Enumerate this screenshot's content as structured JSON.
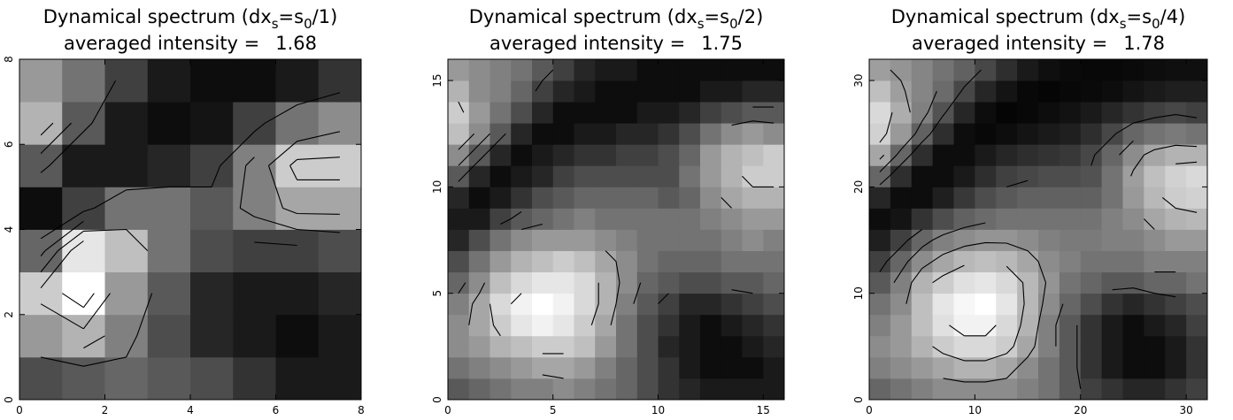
{
  "chart_data": [
    {
      "type": "heatmap",
      "title_parts": [
        {
          "text": "Dynamical spectrum (dx"
        },
        {
          "text": "s",
          "sub": true
        },
        {
          "text": "=s"
        },
        {
          "text": "0",
          "sub": true
        },
        {
          "text": "/1)"
        }
      ],
      "subtitle": "averaged intensity =",
      "averaged_intensity": 1.68,
      "xlim": [
        0,
        8
      ],
      "ylim": [
        0,
        8
      ],
      "xticks": [
        0,
        2,
        4,
        6,
        8
      ],
      "yticks": [
        0,
        2,
        4,
        6,
        8
      ],
      "colormap": "gray",
      "zlim": [
        0,
        1
      ],
      "contour_levels": [
        0.3,
        0.45,
        0.6,
        0.75,
        0.9
      ],
      "z": [
        [
          0.3,
          0.35,
          0.4,
          0.35,
          0.3,
          0.2,
          0.1,
          0.1
        ],
        [
          0.6,
          0.7,
          0.5,
          0.3,
          0.15,
          0.1,
          0.05,
          0.1
        ],
        [
          0.8,
          1.0,
          0.6,
          0.35,
          0.15,
          0.1,
          0.1,
          0.15
        ],
        [
          0.4,
          0.9,
          0.75,
          0.45,
          0.3,
          0.25,
          0.25,
          0.3
        ],
        [
          0.05,
          0.25,
          0.45,
          0.45,
          0.35,
          0.5,
          0.65,
          0.65
        ],
        [
          0.35,
          0.1,
          0.1,
          0.15,
          0.25,
          0.5,
          0.8,
          0.8
        ],
        [
          0.7,
          0.35,
          0.1,
          0.05,
          0.08,
          0.25,
          0.45,
          0.55
        ],
        [
          0.6,
          0.45,
          0.25,
          0.1,
          0.05,
          0.05,
          0.1,
          0.2
        ]
      ]
    },
    {
      "type": "heatmap",
      "title_parts": [
        {
          "text": "Dynamical spectrum (dx"
        },
        {
          "text": "s",
          "sub": true
        },
        {
          "text": "=s"
        },
        {
          "text": "0",
          "sub": true
        },
        {
          "text": "/2)"
        }
      ],
      "subtitle": "averaged intensity =",
      "averaged_intensity": 1.75,
      "xlim": [
        0,
        16
      ],
      "ylim": [
        0,
        16
      ],
      "xticks": [
        0,
        5,
        10,
        15
      ],
      "yticks": [
        0,
        5,
        10,
        15
      ],
      "colormap": "gray",
      "zlim": [
        0,
        1
      ],
      "contour_levels": [
        0.3,
        0.45,
        0.6,
        0.75,
        0.9
      ],
      "z": [
        [
          0.35,
          0.4,
          0.45,
          0.5,
          0.5,
          0.55,
          0.5,
          0.45,
          0.4,
          0.3,
          0.2,
          0.15,
          0.1,
          0.1,
          0.1,
          0.1
        ],
        [
          0.45,
          0.5,
          0.55,
          0.6,
          0.65,
          0.65,
          0.6,
          0.5,
          0.4,
          0.3,
          0.2,
          0.1,
          0.05,
          0.05,
          0.05,
          0.1
        ],
        [
          0.55,
          0.6,
          0.7,
          0.75,
          0.8,
          0.8,
          0.75,
          0.6,
          0.45,
          0.3,
          0.15,
          0.1,
          0.05,
          0.05,
          0.1,
          0.15
        ],
        [
          0.55,
          0.65,
          0.8,
          0.9,
          0.95,
          0.9,
          0.8,
          0.65,
          0.45,
          0.3,
          0.2,
          0.1,
          0.05,
          0.1,
          0.15,
          0.2
        ],
        [
          0.5,
          0.65,
          0.85,
          0.95,
          1.0,
          0.95,
          0.85,
          0.7,
          0.5,
          0.35,
          0.25,
          0.15,
          0.15,
          0.2,
          0.25,
          0.3
        ],
        [
          0.4,
          0.55,
          0.75,
          0.85,
          0.9,
          0.9,
          0.85,
          0.7,
          0.55,
          0.4,
          0.35,
          0.3,
          0.3,
          0.35,
          0.35,
          0.4
        ],
        [
          0.3,
          0.45,
          0.6,
          0.7,
          0.75,
          0.8,
          0.75,
          0.65,
          0.55,
          0.45,
          0.4,
          0.4,
          0.4,
          0.45,
          0.45,
          0.45
        ],
        [
          0.15,
          0.3,
          0.45,
          0.55,
          0.6,
          0.6,
          0.6,
          0.55,
          0.5,
          0.45,
          0.45,
          0.45,
          0.45,
          0.5,
          0.55,
          0.5
        ],
        [
          0.1,
          0.1,
          0.25,
          0.35,
          0.4,
          0.45,
          0.5,
          0.45,
          0.45,
          0.45,
          0.45,
          0.45,
          0.5,
          0.55,
          0.6,
          0.6
        ],
        [
          0.15,
          0.05,
          0.1,
          0.2,
          0.3,
          0.35,
          0.4,
          0.4,
          0.4,
          0.4,
          0.35,
          0.4,
          0.55,
          0.65,
          0.7,
          0.7
        ],
        [
          0.35,
          0.15,
          0.05,
          0.1,
          0.15,
          0.25,
          0.3,
          0.3,
          0.3,
          0.3,
          0.3,
          0.45,
          0.6,
          0.7,
          0.8,
          0.8
        ],
        [
          0.55,
          0.35,
          0.15,
          0.05,
          0.1,
          0.15,
          0.2,
          0.2,
          0.25,
          0.25,
          0.3,
          0.4,
          0.6,
          0.7,
          0.75,
          0.8
        ],
        [
          0.75,
          0.55,
          0.35,
          0.15,
          0.05,
          0.05,
          0.1,
          0.1,
          0.15,
          0.15,
          0.2,
          0.3,
          0.45,
          0.55,
          0.6,
          0.55
        ],
        [
          0.8,
          0.6,
          0.45,
          0.3,
          0.15,
          0.05,
          0.05,
          0.05,
          0.05,
          0.1,
          0.1,
          0.15,
          0.25,
          0.3,
          0.35,
          0.35
        ],
        [
          0.7,
          0.55,
          0.5,
          0.4,
          0.25,
          0.15,
          0.1,
          0.05,
          0.05,
          0.05,
          0.05,
          0.05,
          0.1,
          0.1,
          0.15,
          0.15
        ],
        [
          0.6,
          0.55,
          0.5,
          0.45,
          0.35,
          0.25,
          0.15,
          0.1,
          0.1,
          0.05,
          0.05,
          0.05,
          0.05,
          0.05,
          0.05,
          0.05
        ]
      ]
    },
    {
      "type": "heatmap",
      "title_parts": [
        {
          "text": "Dynamical spectrum (dx"
        },
        {
          "text": "s",
          "sub": true
        },
        {
          "text": "=s"
        },
        {
          "text": "0",
          "sub": true
        },
        {
          "text": "/4)"
        }
      ],
      "subtitle": "averaged intensity =",
      "averaged_intensity": 1.78,
      "xlim": [
        0,
        32
      ],
      "ylim": [
        0,
        32
      ],
      "xticks": [
        0,
        10,
        20,
        30
      ],
      "yticks": [
        0,
        10,
        20,
        30
      ],
      "colormap": "gray",
      "zlim": [
        0,
        1
      ],
      "contour_levels": [
        0.3,
        0.45,
        0.6,
        0.75,
        0.9
      ],
      "z": [
        [
          0.4,
          0.45,
          0.5,
          0.55,
          0.55,
          0.55,
          0.55,
          0.5,
          0.45,
          0.35,
          0.25,
          0.2,
          0.15,
          0.15,
          0.2,
          0.25
        ],
        [
          0.5,
          0.55,
          0.6,
          0.65,
          0.7,
          0.7,
          0.65,
          0.55,
          0.45,
          0.35,
          0.2,
          0.1,
          0.05,
          0.05,
          0.1,
          0.2
        ],
        [
          0.55,
          0.6,
          0.7,
          0.8,
          0.85,
          0.85,
          0.8,
          0.65,
          0.5,
          0.35,
          0.2,
          0.1,
          0.05,
          0.05,
          0.1,
          0.2
        ],
        [
          0.5,
          0.6,
          0.75,
          0.88,
          0.95,
          0.95,
          0.85,
          0.7,
          0.5,
          0.35,
          0.2,
          0.1,
          0.05,
          0.1,
          0.15,
          0.25
        ],
        [
          0.45,
          0.55,
          0.75,
          0.9,
          0.97,
          1.0,
          0.9,
          0.72,
          0.55,
          0.4,
          0.3,
          0.2,
          0.15,
          0.2,
          0.25,
          0.3
        ],
        [
          0.35,
          0.5,
          0.7,
          0.8,
          0.88,
          0.9,
          0.85,
          0.72,
          0.58,
          0.45,
          0.4,
          0.35,
          0.35,
          0.4,
          0.4,
          0.45
        ],
        [
          0.25,
          0.4,
          0.55,
          0.65,
          0.72,
          0.75,
          0.72,
          0.65,
          0.55,
          0.5,
          0.45,
          0.45,
          0.45,
          0.5,
          0.5,
          0.5
        ],
        [
          0.12,
          0.25,
          0.4,
          0.5,
          0.55,
          0.58,
          0.58,
          0.55,
          0.5,
          0.48,
          0.48,
          0.5,
          0.5,
          0.55,
          0.6,
          0.6
        ],
        [
          0.05,
          0.08,
          0.2,
          0.3,
          0.38,
          0.42,
          0.45,
          0.45,
          0.45,
          0.45,
          0.45,
          0.5,
          0.55,
          0.65,
          0.7,
          0.72
        ],
        [
          0.15,
          0.05,
          0.05,
          0.12,
          0.22,
          0.3,
          0.35,
          0.38,
          0.38,
          0.38,
          0.38,
          0.45,
          0.6,
          0.72,
          0.8,
          0.82
        ],
        [
          0.4,
          0.18,
          0.05,
          0.05,
          0.1,
          0.18,
          0.25,
          0.28,
          0.3,
          0.3,
          0.32,
          0.45,
          0.62,
          0.75,
          0.82,
          0.85
        ],
        [
          0.65,
          0.4,
          0.18,
          0.05,
          0.05,
          0.1,
          0.15,
          0.18,
          0.2,
          0.22,
          0.28,
          0.4,
          0.55,
          0.65,
          0.7,
          0.7
        ],
        [
          0.82,
          0.6,
          0.38,
          0.18,
          0.05,
          0.03,
          0.05,
          0.08,
          0.1,
          0.12,
          0.18,
          0.28,
          0.4,
          0.45,
          0.48,
          0.45
        ],
        [
          0.85,
          0.68,
          0.5,
          0.32,
          0.15,
          0.05,
          0.02,
          0.03,
          0.05,
          0.07,
          0.1,
          0.15,
          0.2,
          0.25,
          0.28,
          0.25
        ],
        [
          0.75,
          0.62,
          0.52,
          0.42,
          0.28,
          0.15,
          0.08,
          0.03,
          0.02,
          0.03,
          0.04,
          0.05,
          0.08,
          0.1,
          0.12,
          0.12
        ],
        [
          0.62,
          0.58,
          0.52,
          0.45,
          0.38,
          0.28,
          0.18,
          0.1,
          0.06,
          0.04,
          0.03,
          0.03,
          0.04,
          0.05,
          0.06,
          0.06
        ]
      ]
    }
  ]
}
